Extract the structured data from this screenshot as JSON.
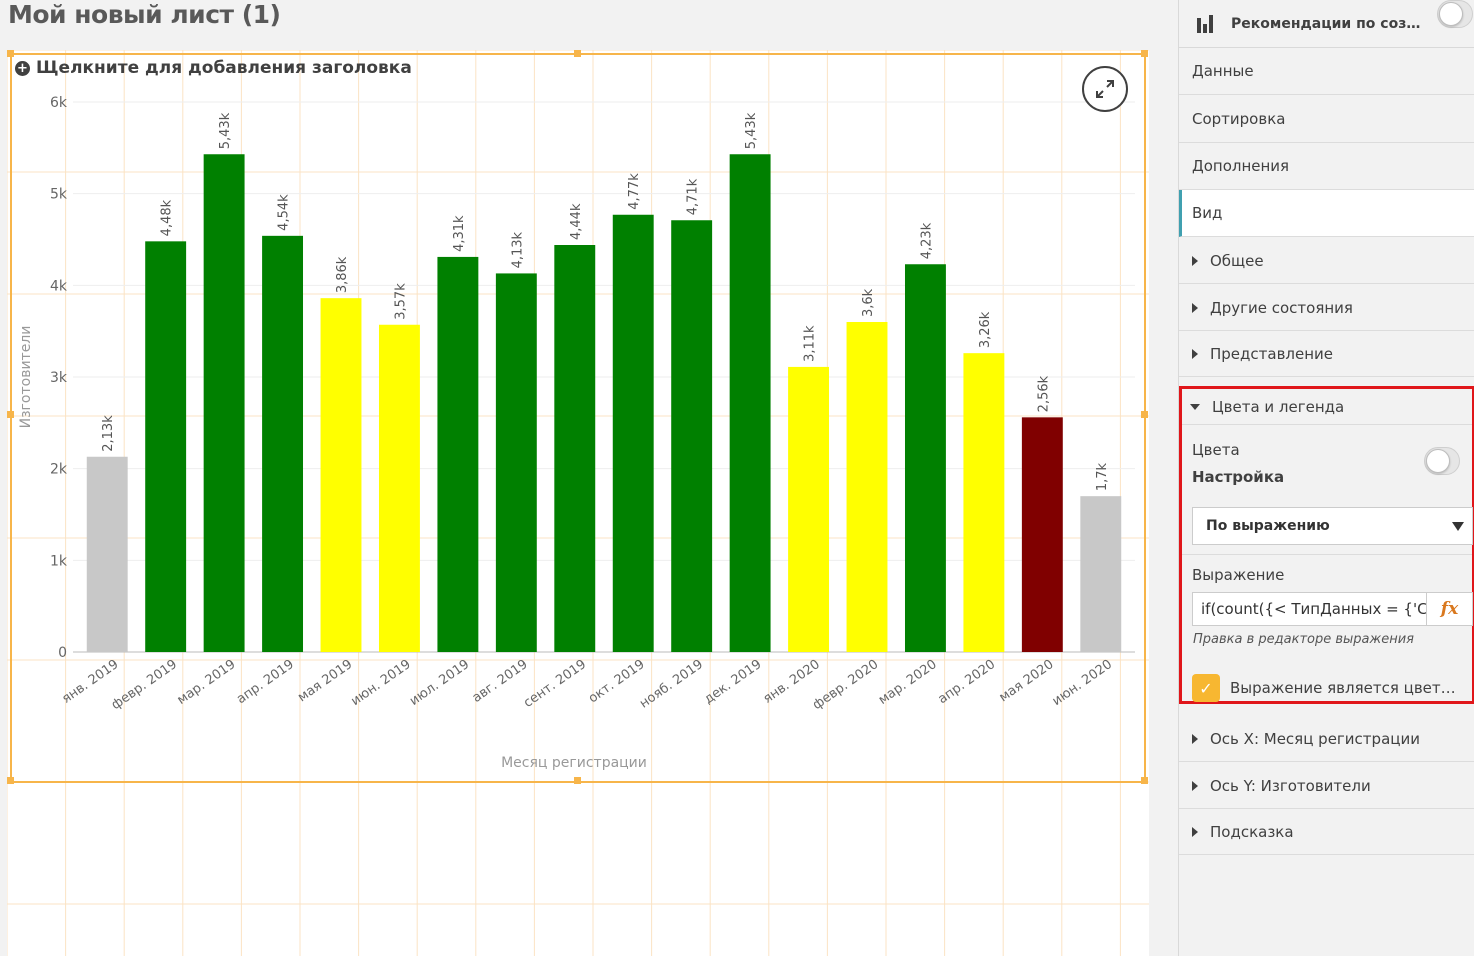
{
  "sheet": {
    "title": "Мой новый лист (1)"
  },
  "chart": {
    "placeholder_title": "Щелкните для добавления заголовка",
    "expand_icon": "expand-arrows-icon"
  },
  "chart_data": {
    "type": "bar",
    "title": "",
    "xlabel": "Месяц регистрации",
    "ylabel": "Изготовители",
    "ylim": [
      0,
      6000
    ],
    "y_ticks": [
      "0",
      "1k",
      "2k",
      "3k",
      "4k",
      "5k",
      "6k"
    ],
    "y_tick_values": [
      0,
      1000,
      2000,
      3000,
      4000,
      5000,
      6000
    ],
    "categories": [
      "янв. 2019",
      "февр. 2019",
      "мар. 2019",
      "апр. 2019",
      "мая 2019",
      "июн. 2019",
      "июл. 2019",
      "авг. 2019",
      "сент. 2019",
      "окт. 2019",
      "нояб. 2019",
      "дек. 2019",
      "янв. 2020",
      "февр. 2020",
      "мар. 2020",
      "апр. 2020",
      "мая 2020",
      "июн. 2020"
    ],
    "values": [
      2130,
      4480,
      5430,
      4540,
      3860,
      3570,
      4310,
      4130,
      4440,
      4770,
      4710,
      5430,
      3110,
      3600,
      4230,
      3260,
      2560,
      1700
    ],
    "value_labels": [
      "2,13k",
      "4,48k",
      "5,43k",
      "4,54k",
      "3,86k",
      "3,57k",
      "4,31k",
      "4,13k",
      "4,44k",
      "4,77k",
      "4,71k",
      "5,43k",
      "3,11k",
      "3,6k",
      "4,23k",
      "3,26k",
      "2,56k",
      "1,7k"
    ],
    "bar_colors": [
      "#c8c8c8",
      "#008000",
      "#008000",
      "#008000",
      "#ffff00",
      "#ffff00",
      "#008000",
      "#008000",
      "#008000",
      "#008000",
      "#008000",
      "#008000",
      "#ffff00",
      "#ffff00",
      "#008000",
      "#ffff00",
      "#800000",
      "#c8c8c8"
    ],
    "grid": true,
    "legend": "none"
  },
  "panel": {
    "header_title": "Рекомендации по созд...",
    "header_icon": "bar-chart-icon",
    "tabs": [
      {
        "label": "Данные",
        "active": false
      },
      {
        "label": "Сортировка",
        "active": false
      },
      {
        "label": "Дополнения",
        "active": false
      },
      {
        "label": "Вид",
        "active": true
      }
    ],
    "sections_top": [
      "Общее",
      "Другие состояния",
      "Представление"
    ],
    "colors_section": {
      "title": "Цвета и легенда",
      "colors_label": "Цвета",
      "mode_label": "Настройка",
      "dropdown_value": "По выражению",
      "expression_label": "Выражение",
      "expression_value": "if(count({< ТипДанных = {'СС'}",
      "fx_label": "fx",
      "hint": "Правка в редакторе выражения",
      "checkbox_label": "Выражение является цветов...",
      "checkbox_checked": true
    },
    "sections_bottom": [
      "Ось X: Месяц регистрации",
      "Ось Y: Изготовители",
      "Подсказка"
    ]
  },
  "colors": {
    "frame": "#f7b54a",
    "highlight": "#e0161a",
    "checkbox": "#f7b731"
  }
}
